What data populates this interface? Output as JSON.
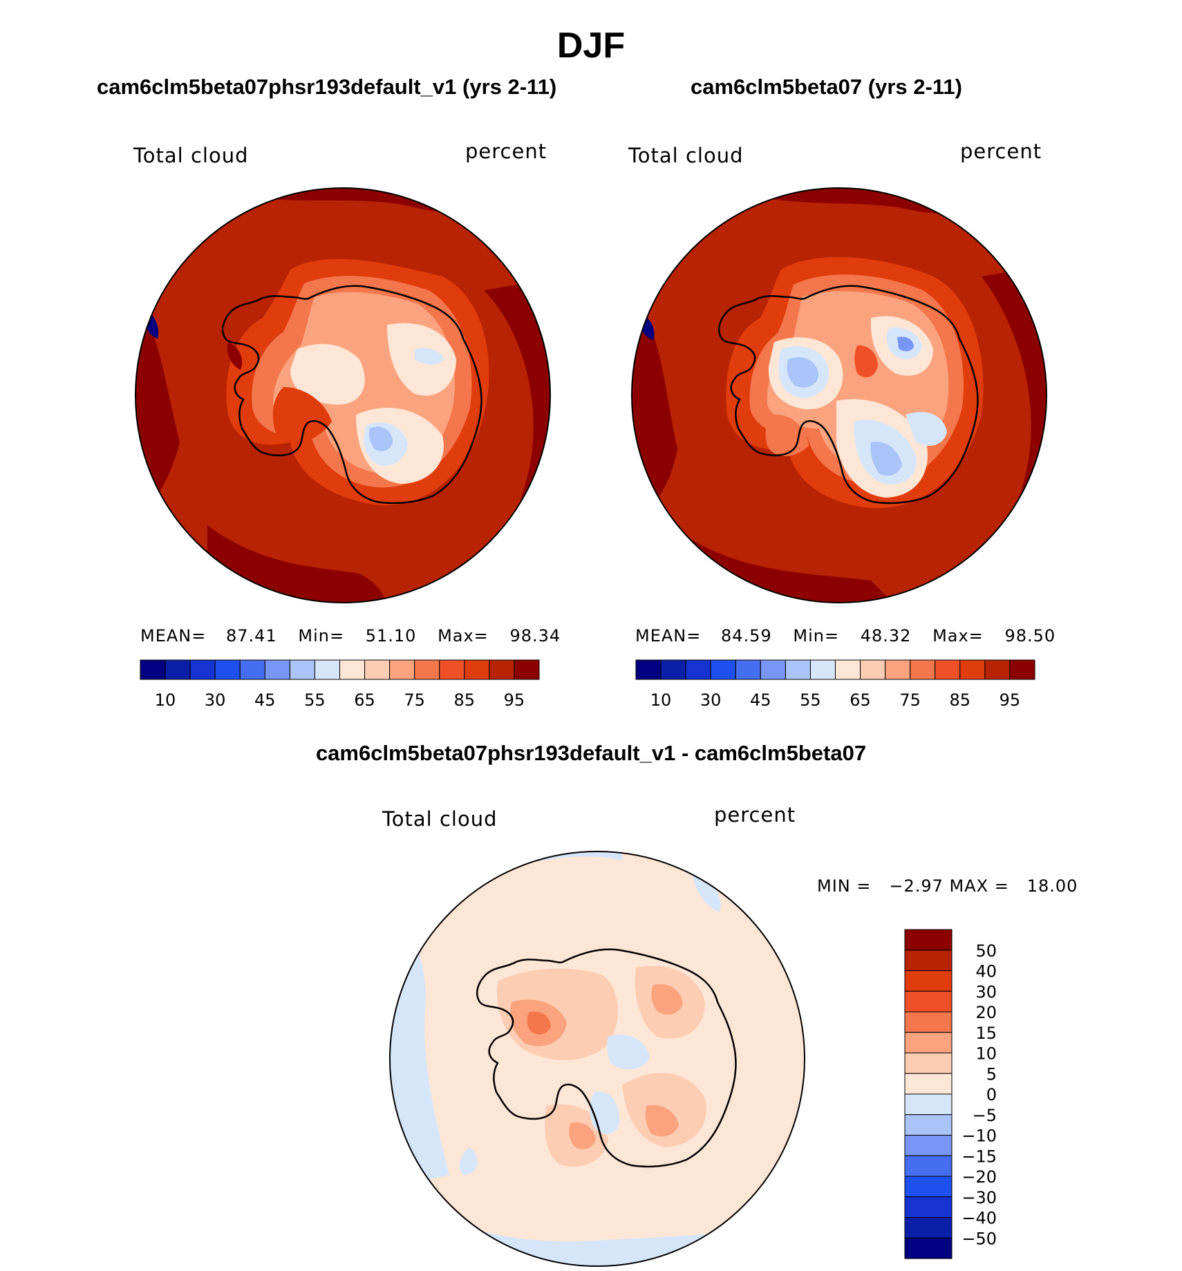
{
  "title": "DJF",
  "panels": [
    {
      "id": "left",
      "title": "cam6clm5beta07phsr193default_v1 (yrs 2-11)",
      "variable": "Total cloud",
      "units": "percent",
      "stats_label": {
        "mean_label": "MEAN=",
        "mean": "87.41",
        "min_label": "Min=",
        "min": "51.10",
        "max_label": "Max=",
        "max": "98.34"
      }
    },
    {
      "id": "right",
      "title": "cam6clm5beta07 (yrs 2-11)",
      "variable": "Total cloud",
      "units": "percent",
      "stats_label": {
        "mean_label": "MEAN=",
        "mean": "84.59",
        "min_label": "Min=",
        "min": "48.32",
        "max_label": "Max=",
        "max": "98.50"
      }
    }
  ],
  "diff_panel": {
    "title": "cam6clm5beta07phsr193default_v1 - cam6clm5beta07",
    "variable": "Total cloud",
    "units": "percent",
    "minmax": "MIN =   −2.97 MAX =   18.00"
  },
  "colors": {
    "abs_scale": [
      "#000080",
      "#0a1fa8",
      "#1433d1",
      "#1e50f0",
      "#466ef0",
      "#7896f5",
      "#aac3f8",
      "#d6e6fa",
      "#fde6d6",
      "#fccdb3",
      "#faa37e",
      "#f4764c",
      "#f05028",
      "#e03c0c",
      "#b82303",
      "#8c0000"
    ],
    "diff_scale": [
      "#000080",
      "#0a1fa8",
      "#1433d1",
      "#1e50f0",
      "#466ef0",
      "#7896f5",
      "#aac3f8",
      "#d6e6fa",
      "#fde6d6",
      "#fccdb3",
      "#faa37e",
      "#f4764c",
      "#f05028",
      "#e03c0c",
      "#b82303",
      "#8c0000"
    ]
  },
  "chart_data": [
    {
      "type": "heatmap",
      "projection": "south polar stereographic",
      "title": "cam6clm5beta07phsr193default_v1 (yrs 2-11)",
      "field": "Total cloud",
      "units": "percent",
      "mean": 87.41,
      "min": 51.1,
      "max": 98.34,
      "colorbar_ticks": [
        "10",
        "30",
        "45",
        "55",
        "65",
        "75",
        "85",
        "95"
      ]
    },
    {
      "type": "heatmap",
      "projection": "south polar stereographic",
      "title": "cam6clm5beta07 (yrs 2-11)",
      "field": "Total cloud",
      "units": "percent",
      "mean": 84.59,
      "min": 48.32,
      "max": 98.5,
      "colorbar_ticks": [
        "10",
        "30",
        "45",
        "55",
        "65",
        "75",
        "85",
        "95"
      ]
    },
    {
      "type": "heatmap",
      "projection": "south polar stereographic",
      "title": "cam6clm5beta07phsr193default_v1 - cam6clm5beta07",
      "field": "Total cloud",
      "units": "percent",
      "min": -2.97,
      "max": 18.0,
      "colorbar_ticks": [
        "50",
        "40",
        "30",
        "20",
        "15",
        "10",
        "5",
        "0",
        "−5",
        "−10",
        "−15",
        "−20",
        "−30",
        "−40",
        "−50"
      ]
    }
  ]
}
